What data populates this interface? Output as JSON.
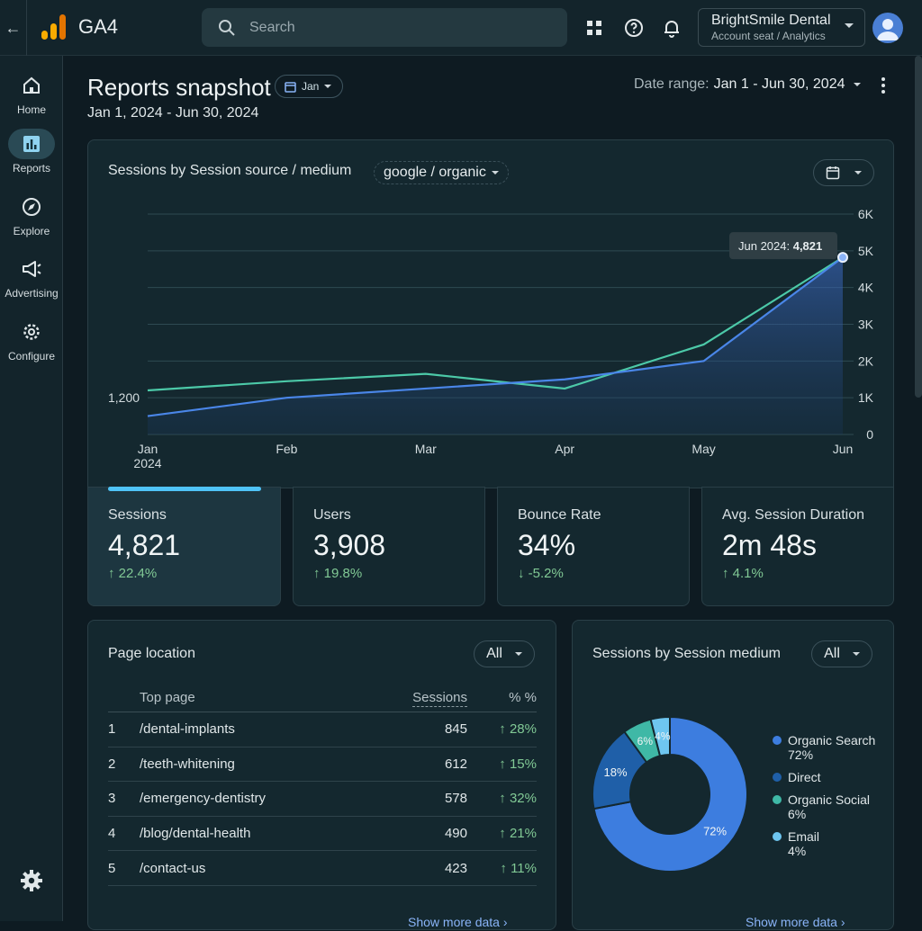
{
  "app": {
    "title": "GA4"
  },
  "search": {
    "placeholder": "Search"
  },
  "account": {
    "name": "BrightSmile Dental",
    "sub": "Account seat / Analytics"
  },
  "sidebar": {
    "items": [
      {
        "label": "Home",
        "icon": "home-icon"
      },
      {
        "label": "Reports",
        "icon": "reports-icon"
      },
      {
        "label": "Explore",
        "icon": "explore-icon"
      },
      {
        "label": "Advertising",
        "icon": "advertising-icon"
      },
      {
        "label": "Configure",
        "icon": "configure-icon"
      }
    ]
  },
  "header": {
    "title": "Reports snapshot",
    "month_chip": "Jan",
    "subtitle": "Jan 1, 2024 - Jun 30, 2024",
    "date_range_label": "Date range:",
    "date_range_value": "Jan 1 - Jun 30, 2024"
  },
  "chart_card": {
    "title": "Sessions by Session source / medium",
    "filter": "google / organic",
    "tooltip_label": "Jun 2024:",
    "tooltip_value": "4,821",
    "annotation": "1,200"
  },
  "chart_data": {
    "type": "line",
    "categories": [
      "Jan\n2024",
      "Feb",
      "Mar",
      "Apr",
      "May",
      "Jun"
    ],
    "ylim": [
      0,
      6000
    ],
    "yticks": [
      "0",
      "1K",
      "2K",
      "3K",
      "4K",
      "5K",
      "6K"
    ],
    "series": [
      {
        "values": [
          1200,
          1450,
          1650,
          1250,
          2450,
          4821
        ],
        "color": "#4cc9a8"
      },
      {
        "values": [
          500,
          1000,
          1250,
          1500,
          2000,
          4821
        ],
        "color": "#4a86e8"
      }
    ]
  },
  "kpis": [
    {
      "label": "Sessions",
      "value": "4,821",
      "delta": "22.4%",
      "dir": "up"
    },
    {
      "label": "Users",
      "value": "3,908",
      "delta": "19.8%",
      "dir": "up"
    },
    {
      "label": "Bounce Rate",
      "value": "34%",
      "delta": "-5.2%",
      "dir": "down"
    },
    {
      "label": "Avg. Session Duration",
      "value": "2m 48s",
      "delta": "4.1%",
      "dir": "up"
    }
  ],
  "table_card": {
    "title": "Page location",
    "filter": "All",
    "headers": {
      "page": "Top page",
      "sessions": "Sessions",
      "pct": "% %"
    },
    "rows": [
      {
        "idx": "1",
        "page": "/dental-implants",
        "sessions": "845",
        "pct": "28%"
      },
      {
        "idx": "2",
        "page": "/teeth-whitening",
        "sessions": "612",
        "pct": "15%"
      },
      {
        "idx": "3",
        "page": "/emergency-dentistry",
        "sessions": "578",
        "pct": "32%"
      },
      {
        "idx": "4",
        "page": "/blog/dental-health",
        "sessions": "490",
        "pct": "21%"
      },
      {
        "idx": "5",
        "page": "/contact-us",
        "sessions": "423",
        "pct": "11%"
      }
    ],
    "show_more": "Show more data"
  },
  "donut_card": {
    "title": "Sessions by Session medium",
    "filter": "All",
    "show_more": "Show more data"
  },
  "donut_data": {
    "type": "pie",
    "slices": [
      {
        "label": "Organic Search",
        "value": 72,
        "pct_label": "72%",
        "color": "#3d7ddf"
      },
      {
        "label": "Direct",
        "value": 18,
        "pct_label": "18%",
        "color": "#1f5fa8"
      },
      {
        "label": "Organic Social",
        "value": 6,
        "pct_label": "6%",
        "color": "#3fb8a6"
      },
      {
        "label": "Email",
        "value": 4,
        "pct_label": "4%",
        "color": "#6ec6f0"
      }
    ],
    "legend": [
      {
        "label": "Organic Search",
        "sub": "72%"
      },
      {
        "label": "Direct",
        "sub": ""
      },
      {
        "label": "Organic Social",
        "sub": "6%"
      },
      {
        "label": "Email",
        "sub": "4%"
      }
    ]
  }
}
